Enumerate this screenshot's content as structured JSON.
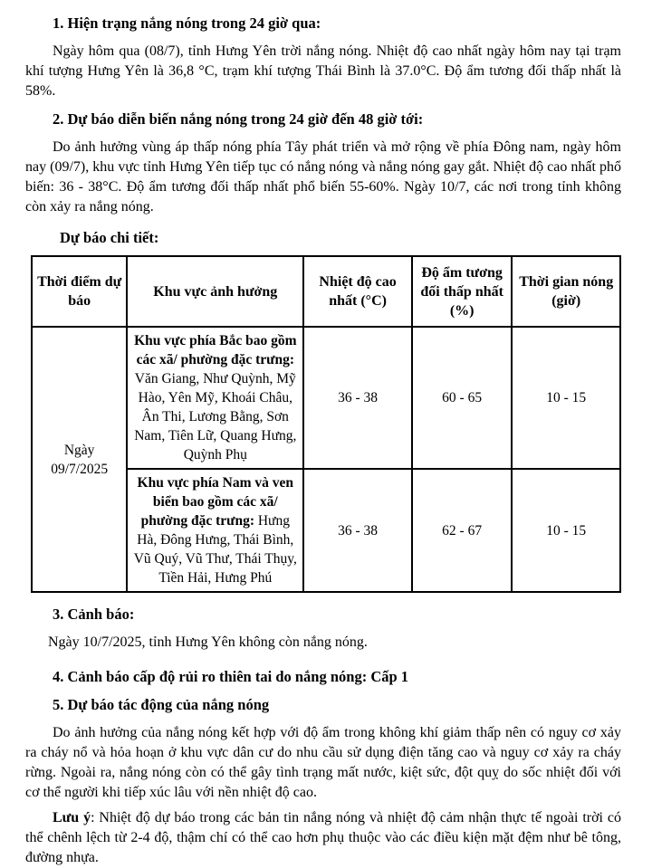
{
  "sections": {
    "s1": {
      "heading": "1. Hiện trạng nắng nóng trong 24 giờ qua:",
      "body": "Ngày hôm qua (08/7), tỉnh Hưng Yên trời nắng nóng. Nhiệt độ cao nhất ngày hôm nay tại trạm khí tượng Hưng Yên là 36,8 °C, trạm khí tượng Thái Bình là 37.0°C. Độ ẩm tương đối thấp nhất là 58%."
    },
    "s2": {
      "heading": "2. Dự báo diễn biến nắng nóng trong 24 giờ đến 48 giờ tới:",
      "body": "Do ảnh hưởng vùng áp thấp nóng phía Tây phát triển và mở rộng về phía Đông nam, ngày hôm nay (09/7), khu vực tỉnh Hưng Yên tiếp tục có nắng nóng và nắng nóng gay gắt. Nhiệt độ cao nhất phổ biến: 36 - 38°C. Độ ẩm tương đối thấp nhất phổ biến 55-60%. Ngày 10/7, các nơi trong tỉnh không còn xảy ra nắng nóng."
    },
    "s3": {
      "heading": "3. Cảnh báo:",
      "body": "Ngày 10/7/2025, tỉnh Hưng Yên không còn nắng nóng."
    },
    "s4": {
      "heading": "4. Cảnh báo cấp độ rủi ro thiên tai do nắng nóng: Cấp 1"
    },
    "s5": {
      "heading": "5. Dự báo tác động của nắng nóng",
      "body": "Do ảnh hưởng của nắng nóng kết hợp với độ ẩm trong không khí giảm thấp nên có nguy cơ xảy ra cháy nổ và hỏa hoạn ở khu vực dân cư do nhu cầu sử dụng điện tăng cao và nguy cơ xảy ra cháy rừng. Ngoài ra, nắng nóng còn có thể gây tình trạng mất nước, kiệt sức, đột quỵ do sốc nhiệt đối với cơ thể người khi tiếp xúc lâu với nền nhiệt độ cao."
    }
  },
  "note": {
    "label": "Lưu ý",
    "body": ": Nhiệt độ dự báo trong các bản tin nắng nóng và nhiệt độ cảm nhận thực tế ngoài trời có thể chênh lệch từ 2-4 độ, thậm chí có thể cao hơn phụ thuộc vào các điều kiện mặt đệm như bê tông, đường nhựa."
  },
  "table": {
    "caption": "Dự báo chi tiết:",
    "col_headers": [
      "Thời điểm dự báo",
      "Khu vực ảnh hưởng",
      "Nhiệt độ cao nhất (°C)",
      "Độ ẩm tương đối thấp nhất (%)",
      "Thời gian nóng (giờ)"
    ],
    "date_cell": "Ngày 09/7/2025",
    "rows": [
      {
        "region_bold": "Khu vực phía Bắc bao gồm các xã/ phường đặc trưng:",
        "region_list": " Văn Giang, Như Quỳnh, Mỹ Hào, Yên Mỹ, Khoái Châu, Ân Thi, Lương Bằng, Sơn Nam, Tiên Lữ, Quang Hưng, Quỳnh Phụ",
        "temp": "36 - 38",
        "humidity": "60 - 65",
        "hours": "10 - 15"
      },
      {
        "region_bold": "Khu vực phía Nam và ven biển bao gồm các xã/ phường đặc trưng:",
        "region_list": " Hưng Hà, Đông Hưng, Thái Bình, Vũ Quý, Vũ Thư, Thái Thụy, Tiền Hải, Hưng Phú",
        "temp": "36 - 38",
        "humidity": "62 - 67",
        "hours": "10 - 15"
      }
    ]
  }
}
